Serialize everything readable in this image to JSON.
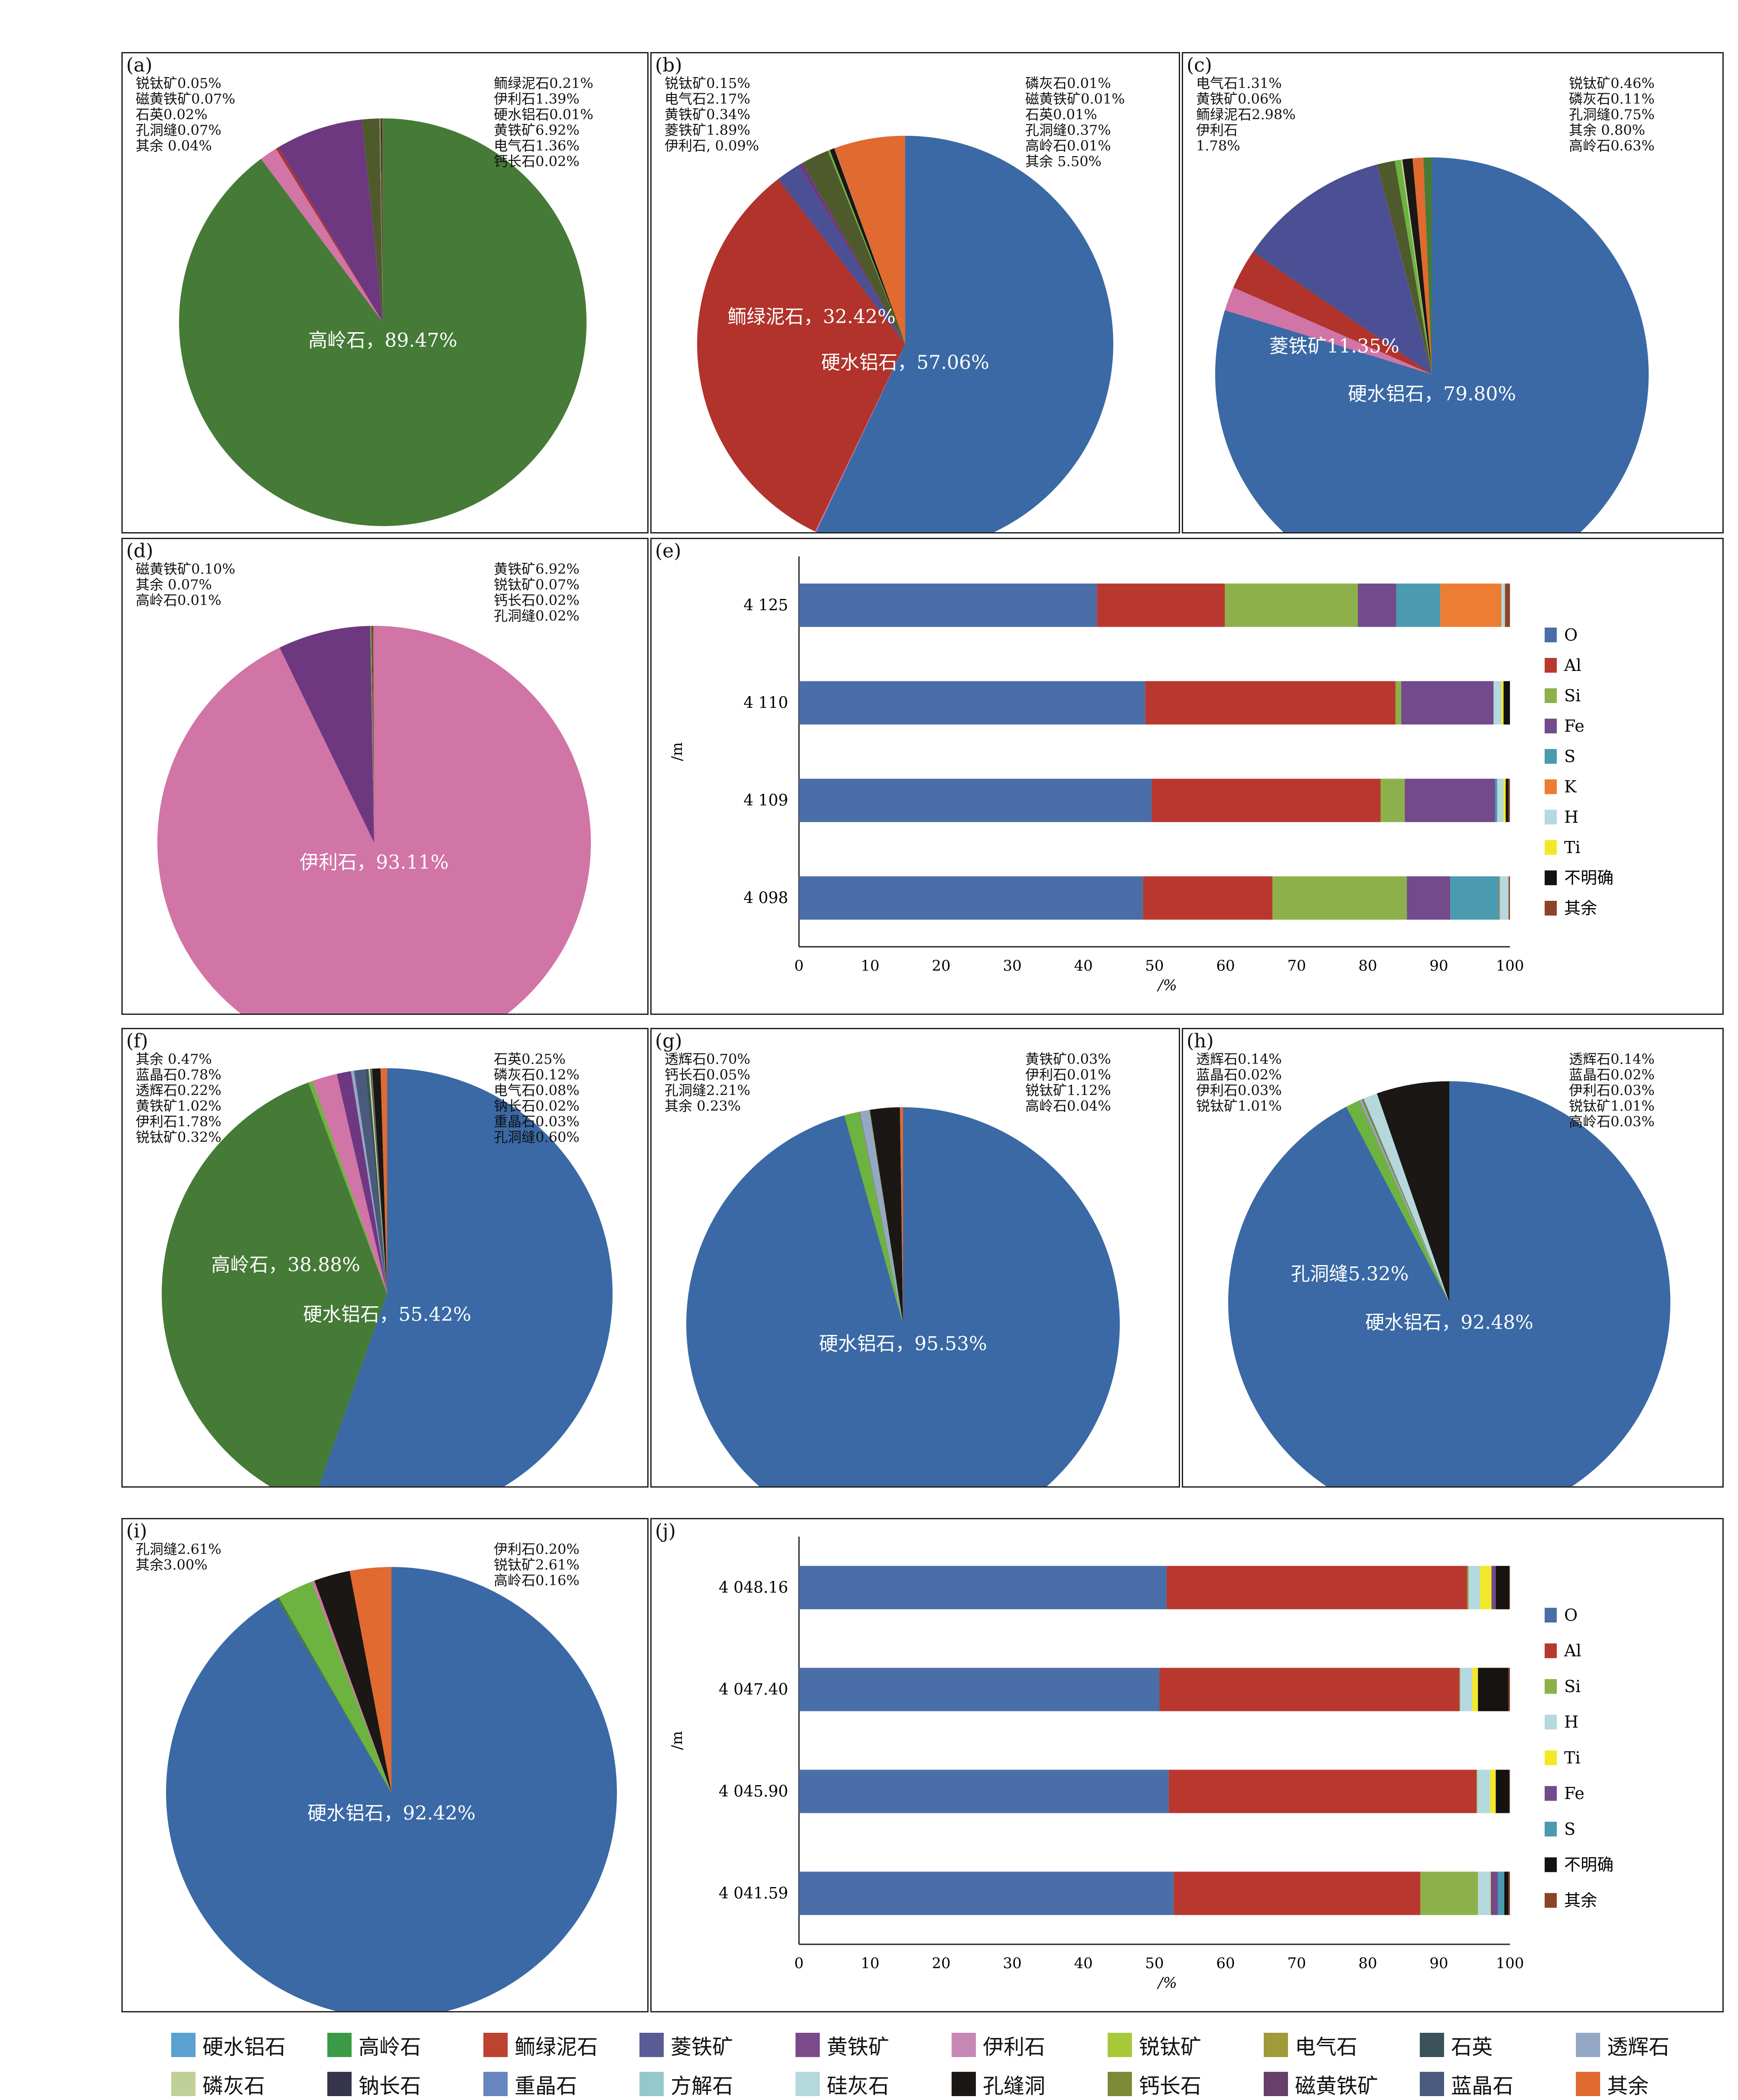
{
  "colors": {
    "硬水铝石": "#3a69a5",
    "高岭石": "#467a37",
    "鲕绿泥石": "#b1332b",
    "菱铁矿": "#4a5093",
    "黄铁矿": "#6e3881",
    "伊利石": "#d174a6",
    "锐钛矿": "#6db33f",
    "电气石": "#4f5a2c",
    "石英": "#3d5359",
    "透辉石": "#94a8c6",
    "磷灰石": "#c2d39a",
    "钠长石": "#36344d",
    "重晶石": "#6785be",
    "方解石": "#94c8cc",
    "硅灰石": "#b4d8dc",
    "孔洞缝": "#1a1714",
    "钙长石": "#7a8a36",
    "磁黄铁矿": "#663f6b",
    "蓝晶石": "#4a5a7d",
    "其余": "#e06a2f",
    "O": "#4a6ea8",
    "Al": "#b8382f",
    "Si": "#8db14a",
    "Fe": "#734a8b",
    "S": "#4a9ab0",
    "K": "#ec7d32",
    "H": "#b4d9de",
    "Ti": "#f3e828",
    "不明确": "#15120f",
    "其余_el": "#8b4426"
  },
  "legend": {
    "row1": [
      "硬水铝石",
      "高岭石",
      "鲕绿泥石",
      "菱铁矿",
      "黄铁矿",
      "伊利石",
      "锐钛矿",
      "电气石",
      "石英",
      "透辉石"
    ],
    "row2": [
      "磷灰石",
      "钠长石",
      "重晶石",
      "方解石",
      "硅灰石",
      "孔缝洞",
      "钙长石",
      "磁黄铁矿",
      "蓝晶石",
      "其余"
    ],
    "row1_colors": [
      "#5aa0d0",
      "#3a9a46",
      "#bb432f",
      "#5a5a96",
      "#7a4a8a",
      "#c888b6",
      "#a8c838",
      "#a09a38",
      "#3a5258",
      "#94a8c6"
    ],
    "row2_colors": [
      "#c0d098",
      "#36344d",
      "#6785be",
      "#94c8cc",
      "#b4d8dc",
      "#1a1714",
      "#7a8a36",
      "#663f6b",
      "#4a5a7d",
      "#e06a2f"
    ]
  },
  "chart_data": [
    {
      "id": "a",
      "type": "pie",
      "panel_label": "(a)",
      "slices": [
        {
          "name": "高岭石",
          "value": 89.47
        },
        {
          "name": "硬水铝石",
          "value": 0.01
        },
        {
          "name": "伊利石",
          "value": 1.39
        },
        {
          "name": "鲕绿泥石",
          "value": 0.21
        },
        {
          "name": "黄铁矿",
          "value": 6.92
        },
        {
          "name": "电气石",
          "value": 1.36
        },
        {
          "name": "钙长石",
          "value": 0.02
        },
        {
          "name": "锐钛矿",
          "value": 0.05
        },
        {
          "name": "磁黄铁矿",
          "value": 0.07
        },
        {
          "name": "石英",
          "value": 0.02
        },
        {
          "name": "孔洞缝",
          "value": 0.07
        },
        {
          "name": "其余",
          "value": 0.04
        }
      ],
      "center_labels": [
        "高岭石，89.47%"
      ],
      "annotations": [
        "鲕绿泥石0.21%",
        "伊利石1.39%",
        "硬水铝石0.01%",
        "黄铁矿6.92%",
        "电气石1.36%",
        "钙长石0.02%",
        "锐钛矿0.05%",
        "磁黄铁矿0.07%",
        "石英0.02%",
        "孔洞缝0.07%",
        "其余 0.04%"
      ]
    },
    {
      "id": "b",
      "type": "pie",
      "panel_label": "(b)",
      "slices": [
        {
          "name": "硬水铝石",
          "value": 57.06
        },
        {
          "name": "伊利石",
          "value": 0.09
        },
        {
          "name": "鲕绿泥石",
          "value": 32.42
        },
        {
          "name": "菱铁矿",
          "value": 1.89
        },
        {
          "name": "黄铁矿",
          "value": 0.34
        },
        {
          "name": "电气石",
          "value": 2.17
        },
        {
          "name": "锐钛矿",
          "value": 0.15
        },
        {
          "name": "孔洞缝",
          "value": 0.37
        },
        {
          "name": "石英",
          "value": 0.01
        },
        {
          "name": "磁黄铁矿",
          "value": 0.01
        },
        {
          "name": "磷灰石",
          "value": 0.01
        },
        {
          "name": "其余",
          "value": 5.5
        },
        {
          "name": "高岭石",
          "value": 0.01
        }
      ],
      "center_labels": [
        "硬水铝石，57.06%",
        "鲕绿泥石，32.42%"
      ],
      "annotations": [
        "磷灰石0.01%",
        "磁黄铁矿0.01%",
        "石英0.01%",
        "孔洞缝0.37%",
        "高岭石0.01%",
        "其余 5.50%",
        "锐钛矿0.15%",
        "电气石2.17%",
        "黄铁矿0.34%",
        "菱铁矿1.89%",
        "伊利石, 0.09%"
      ]
    },
    {
      "id": "c",
      "type": "pie",
      "panel_label": "(c)",
      "slices": [
        {
          "name": "硬水铝石",
          "value": 79.8
        },
        {
          "name": "伊利石",
          "value": 1.78
        },
        {
          "name": "鲕绿泥石",
          "value": 2.98
        },
        {
          "name": "菱铁矿",
          "value": 11.35
        },
        {
          "name": "黄铁矿",
          "value": 0.06
        },
        {
          "name": "电气石",
          "value": 1.31
        },
        {
          "name": "锐钛矿",
          "value": 0.46
        },
        {
          "name": "磷灰石",
          "value": 0.11
        },
        {
          "name": "孔洞缝",
          "value": 0.75
        },
        {
          "name": "其余",
          "value": 0.8
        },
        {
          "name": "高岭石",
          "value": 0.63
        }
      ],
      "center_labels": [
        "硬水铝石，79.80%",
        "菱铁矿11.35%"
      ],
      "annotations": [
        "锐钛矿0.46%",
        "磷灰石0.11%",
        "孔洞缝0.75%",
        "其余 0.80%",
        "高岭石0.63%",
        "电气石1.31%",
        "黄铁矿0.06%",
        "鲕绿泥石2.98%",
        "伊利石",
        "1.78%"
      ]
    },
    {
      "id": "d",
      "type": "pie",
      "panel_label": "(d)",
      "slices": [
        {
          "name": "伊利石",
          "value": 93.11
        },
        {
          "name": "黄铁矿",
          "value": 6.92
        },
        {
          "name": "锐钛矿",
          "value": 0.07
        },
        {
          "name": "钙长石",
          "value": 0.02
        },
        {
          "name": "孔洞缝",
          "value": 0.02
        },
        {
          "name": "磁黄铁矿",
          "value": 0.1
        },
        {
          "name": "其余",
          "value": 0.07
        },
        {
          "name": "高岭石",
          "value": 0.01
        }
      ],
      "center_labels": [
        "伊利石，93.11%"
      ],
      "annotations": [
        "黄铁矿6.92%",
        "锐钛矿0.07%",
        "钙长石0.02%",
        "孔洞缝0.02%",
        "磁黄铁矿0.10%",
        "其余 0.07%",
        "高岭石0.01%"
      ]
    },
    {
      "id": "e",
      "type": "bar",
      "orientation": "horizontal-stacked",
      "panel_label": "(e)",
      "categories": [
        "4 125",
        "4 110",
        "4 109",
        "4 098"
      ],
      "series_names": [
        "O",
        "Al",
        "Si",
        "Fe",
        "S",
        "K",
        "H",
        "Ti",
        "不明确",
        "其余"
      ],
      "values": [
        [
          41.9,
          18.0,
          18.7,
          5.4,
          6.2,
          8.6,
          0.5,
          0.0,
          0.0,
          0.7
        ],
        [
          48.7,
          35.2,
          0.8,
          13.0,
          0.0,
          0.0,
          1.1,
          0.3,
          0.9,
          0.0
        ],
        [
          49.6,
          32.2,
          3.4,
          12.7,
          0.3,
          0.0,
          0.9,
          0.3,
          0.4,
          0.2
        ],
        [
          48.4,
          18.2,
          18.9,
          6.1,
          6.9,
          0.1,
          1.2,
          0.0,
          0.0,
          0.2
        ]
      ],
      "xlabel": "/%",
      "ylabel": "/m",
      "xticks": [
        "0",
        "10",
        "20",
        "30",
        "40",
        "50",
        "60",
        "70",
        "80",
        "90",
        "100"
      ],
      "xlim": [
        0,
        100
      ],
      "legend_position": "right"
    },
    {
      "id": "f",
      "type": "pie",
      "panel_label": "(f)",
      "slices": [
        {
          "name": "硬水铝石",
          "value": 55.42
        },
        {
          "name": "高岭石",
          "value": 38.88
        },
        {
          "name": "锐钛矿",
          "value": 0.32
        },
        {
          "name": "伊利石",
          "value": 1.78
        },
        {
          "name": "黄铁矿",
          "value": 1.02
        },
        {
          "name": "透辉石",
          "value": 0.22
        },
        {
          "name": "蓝晶石",
          "value": 0.78
        },
        {
          "name": "石英",
          "value": 0.25
        },
        {
          "name": "磷灰石",
          "value": 0.12
        },
        {
          "name": "电气石",
          "value": 0.08
        },
        {
          "name": "钠长石",
          "value": 0.02
        },
        {
          "name": "重晶石",
          "value": 0.03
        },
        {
          "name": "孔洞缝",
          "value": 0.6
        },
        {
          "name": "其余",
          "value": 0.47
        }
      ],
      "center_labels": [
        "硬水铝石，55.42%",
        "高岭石，38.88%"
      ],
      "annotations": [
        "石英0.25%",
        "磷灰石0.12%",
        "电气石0.08%",
        "钠长石0.02%",
        "重晶石0.03%",
        "孔洞缝0.60%",
        "其余 0.47%",
        "蓝晶石0.78%",
        "透辉石0.22%",
        "黄铁矿1.02%",
        "伊利石1.78%",
        "锐钛矿0.32%"
      ]
    },
    {
      "id": "g",
      "type": "pie",
      "panel_label": "(g)",
      "slices": [
        {
          "name": "硬水铝石",
          "value": 95.53
        },
        {
          "name": "高岭石",
          "value": 0.04
        },
        {
          "name": "锐钛矿",
          "value": 1.12
        },
        {
          "name": "伊利石",
          "value": 0.01
        },
        {
          "name": "黄铁矿",
          "value": 0.03
        },
        {
          "name": "透辉石",
          "value": 0.7
        },
        {
          "name": "钙长石",
          "value": 0.05
        },
        {
          "name": "孔洞缝",
          "value": 2.21
        },
        {
          "name": "其余",
          "value": 0.23
        }
      ],
      "center_labels": [
        "硬水铝石，95.53%"
      ],
      "annotations": [
        "黄铁矿0.03%",
        "伊利石0.01%",
        "锐钛矿1.12%",
        "高岭石0.04%",
        "透辉石0.70%",
        "钙长石0.05%",
        "孔洞缝2.21%",
        "其余 0.23%"
      ]
    },
    {
      "id": "h",
      "type": "pie",
      "panel_label": "(h)",
      "slices": [
        {
          "name": "硬水铝石",
          "value": 92.48
        },
        {
          "name": "高岭石",
          "value": 0.03
        },
        {
          "name": "锐钛矿",
          "value": 1.01
        },
        {
          "name": "伊利石",
          "value": 0.03
        },
        {
          "name": "蓝晶石",
          "value": 0.02
        },
        {
          "name": "透辉石",
          "value": 0.14
        },
        {
          "name": "钙长石",
          "value": 0.14
        },
        {
          "name": "石英",
          "value": 0.02
        },
        {
          "name": "方解石",
          "value": 0.03
        },
        {
          "name": "硅灰石",
          "value": 1.01
        },
        {
          "name": "孔洞缝",
          "value": 5.32
        }
      ],
      "center_labels": [
        "硬水铝石，92.48%",
        "孔洞缝5.32%"
      ],
      "annotations": [
        "透辉石0.14%",
        "蓝晶石0.02%",
        "伊利石0.03%",
        "锐钛矿1.01%",
        "高岭石0.03%",
        "透辉石0.14%",
        "蓝晶石0.02%",
        "伊利石0.03%",
        "锐钛矿1.01%"
      ]
    },
    {
      "id": "i",
      "type": "pie",
      "panel_label": "(i)",
      "slices": [
        {
          "name": "硬水铝石",
          "value": 92.42
        },
        {
          "name": "高岭石",
          "value": 0.16
        },
        {
          "name": "锐钛矿",
          "value": 2.61
        },
        {
          "name": "伊利石",
          "value": 0.2
        },
        {
          "name": "孔洞缝",
          "value": 2.61
        },
        {
          "name": "其余",
          "value": 3.0
        }
      ],
      "center_labels": [
        "硬水铝石，92.42%"
      ],
      "annotations": [
        "伊利石0.20%",
        "锐钛矿2.61%",
        "高岭石0.16%",
        "孔洞缝2.61%",
        "其余3.00%"
      ]
    },
    {
      "id": "j",
      "type": "bar",
      "orientation": "horizontal-stacked",
      "panel_label": "(j)",
      "categories": [
        "4 048.16",
        "4 047.40",
        "4 045.90",
        "4 041.59"
      ],
      "series_names": [
        "O",
        "Al",
        "Si",
        "H",
        "Ti",
        "Fe",
        "S",
        "不明确",
        "其余"
      ],
      "values": [
        [
          51.7,
          42.3,
          0.2,
          1.6,
          1.6,
          0.6,
          0.0,
          1.9,
          0.1
        ],
        [
          50.7,
          42.2,
          0.1,
          1.7,
          0.8,
          0.0,
          0.0,
          4.3,
          0.2
        ],
        [
          52.0,
          43.3,
          0.1,
          1.8,
          0.8,
          0.0,
          0.0,
          1.9,
          0.1
        ],
        [
          52.7,
          34.7,
          8.1,
          1.7,
          0.1,
          1.0,
          0.9,
          0.6,
          0.2
        ]
      ],
      "xlabel": "/%",
      "ylabel": "/m",
      "xticks": [
        "0",
        "10",
        "20",
        "30",
        "40",
        "50",
        "60",
        "70",
        "80",
        "90",
        "100"
      ],
      "xlim": [
        0,
        100
      ],
      "legend_position": "right"
    }
  ]
}
